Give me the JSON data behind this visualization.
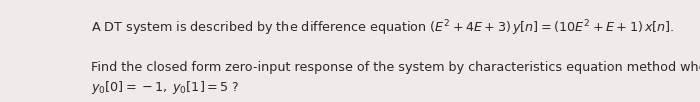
{
  "background_color": "#eeece8",
  "text_color": "#2a2a2a",
  "line1_plain": "A DT system is described by the difference equation ",
  "line1_math": "$(E^2+4E+3)\\,y[n]=(10E^2+E+1)\\,x[n]$.",
  "line2": "Find the closed form zero-input response of the system by characteristics equation method when",
  "line3": "$y_0[0]=-1,\\; y_0[1]=5\\;?$",
  "fontsize": 9.2,
  "fig_width": 7.0,
  "fig_height": 1.02,
  "dpi": 100
}
